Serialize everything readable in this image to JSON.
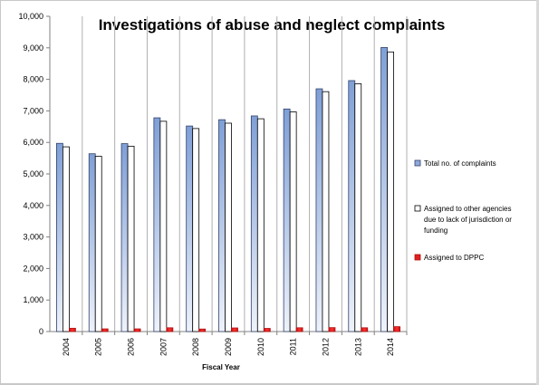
{
  "chart_data": {
    "type": "bar",
    "title": "Investigations of abuse and neglect complaints",
    "xlabel": "Fiscal Year",
    "ylabel": "",
    "categories": [
      "2004",
      "2005",
      "2006",
      "2007",
      "2008",
      "2009",
      "2010",
      "2011",
      "2012",
      "2013",
      "2014"
    ],
    "ylim": [
      0,
      10000
    ],
    "yticks": [
      "0",
      "1,000",
      "2,000",
      "3,000",
      "4,000",
      "5,000",
      "6,000",
      "7,000",
      "8,000",
      "9,000",
      "10,000"
    ],
    "ytick_values": [
      0,
      1000,
      2000,
      3000,
      4000,
      5000,
      6000,
      7000,
      8000,
      9000,
      10000
    ],
    "grid": "vertical-lines",
    "legend_position": "right",
    "series": [
      {
        "name": "Total no. of complaints",
        "legend_lines": [
          "Total no. of complaints"
        ],
        "color": "#8eaadb",
        "values": [
          5970,
          5640,
          5960,
          6780,
          6520,
          6720,
          6840,
          7060,
          7700,
          7960,
          9010
        ]
      },
      {
        "name": "Assigned to other agencies due to lack of jurisdiction or funding",
        "legend_lines": [
          "Assigned to other agencies",
          "due to lack of jurisdiction or",
          "funding"
        ],
        "color": "#ffffff",
        "values": [
          5860,
          5560,
          5880,
          6670,
          6440,
          6610,
          6750,
          6970,
          7610,
          7860,
          8870
        ]
      },
      {
        "name": "Assigned to DPPC",
        "legend_lines": [
          "Assigned to DPPC"
        ],
        "color": "#e02020",
        "values": [
          105,
          85,
          85,
          120,
          80,
          115,
          100,
          120,
          125,
          120,
          155
        ]
      }
    ]
  }
}
